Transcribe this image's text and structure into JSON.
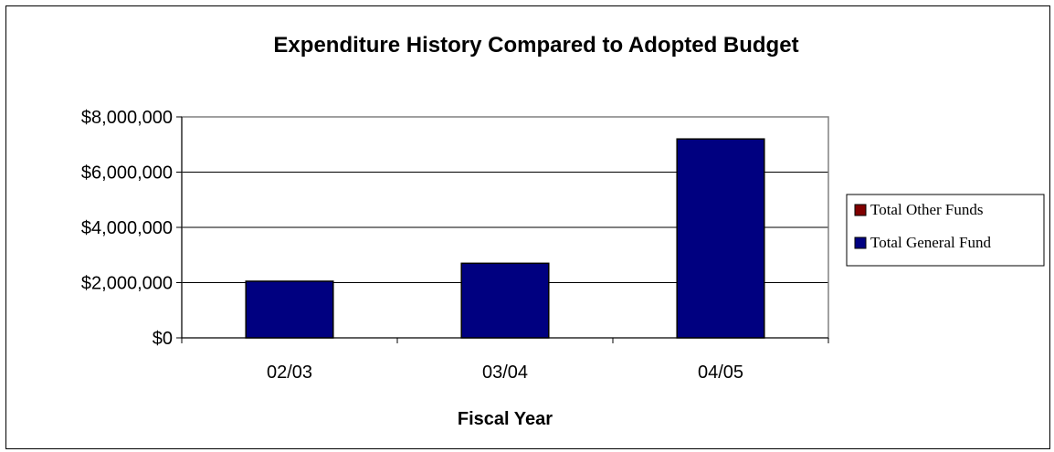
{
  "chart_data": {
    "type": "bar",
    "title": "Expenditure History Compared to Adopted Budget",
    "xlabel": "Fiscal Year",
    "ylabel": "",
    "categories": [
      "02/03",
      "03/04",
      "04/05"
    ],
    "series": [
      {
        "name": "Total Other Funds",
        "color": "#800000",
        "values": [
          0,
          0,
          0
        ]
      },
      {
        "name": "Total General Fund",
        "color": "#000080",
        "values": [
          2050000,
          2700000,
          7200000
        ]
      }
    ],
    "ylim": [
      0,
      8000000
    ],
    "yticks": [
      {
        "value": 0,
        "label": "$0"
      },
      {
        "value": 2000000,
        "label": "$2,000,000"
      },
      {
        "value": 4000000,
        "label": "$4,000,000"
      },
      {
        "value": 6000000,
        "label": "$6,000,000"
      },
      {
        "value": 8000000,
        "label": "$8,000,000"
      }
    ],
    "grid": true,
    "stacked": true,
    "legend_position": "right",
    "legend": [
      "Total Other Funds",
      "Total General Fund"
    ]
  }
}
